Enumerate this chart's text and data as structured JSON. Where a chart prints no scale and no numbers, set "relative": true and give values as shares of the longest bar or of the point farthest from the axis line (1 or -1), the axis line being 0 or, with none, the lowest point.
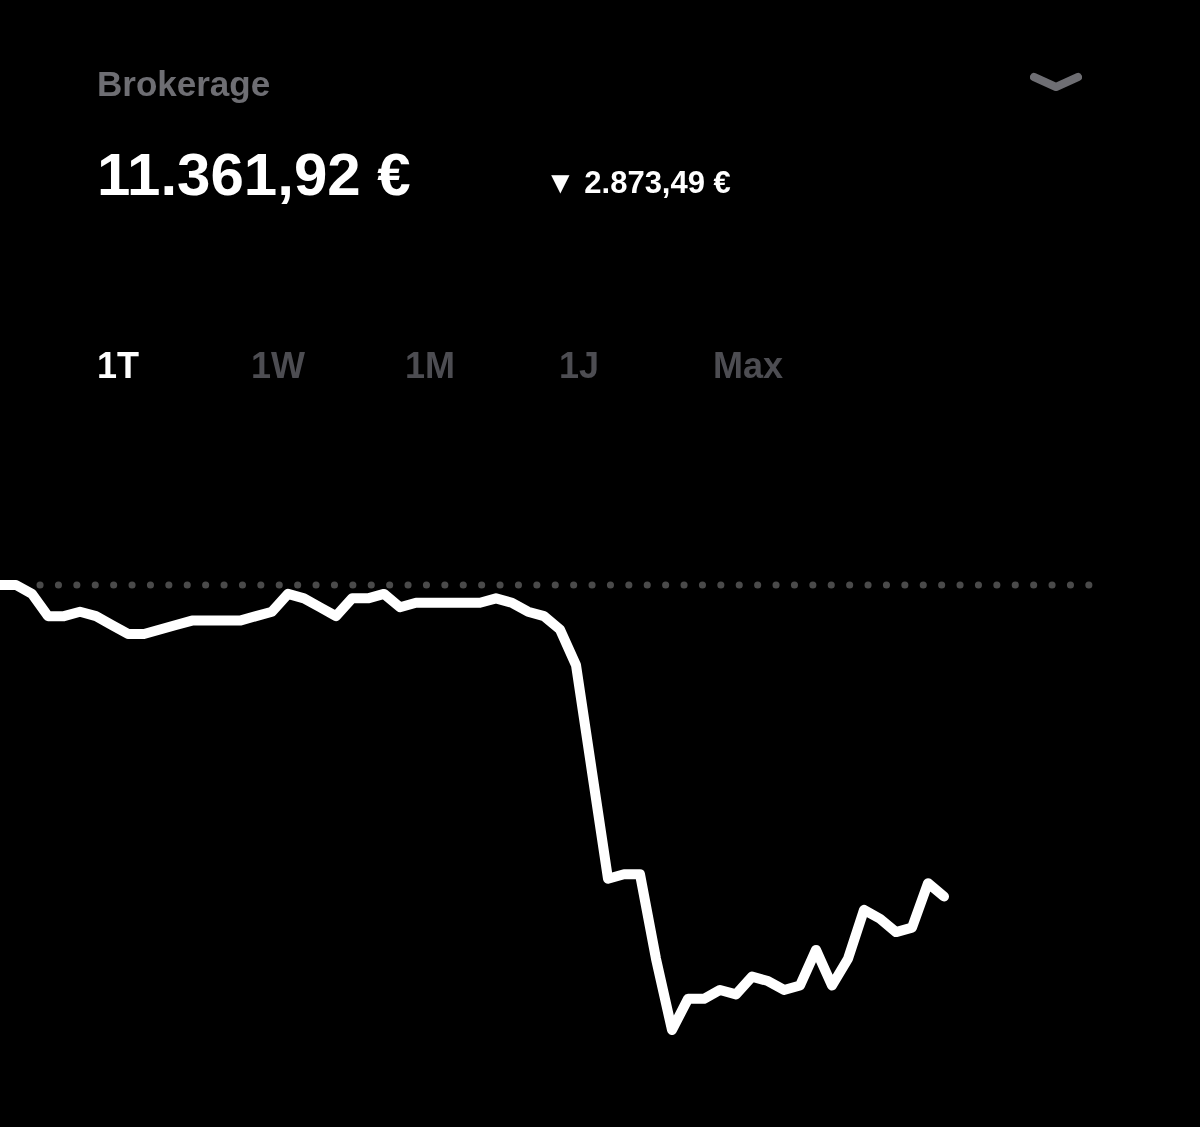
{
  "chart_data": {
    "type": "line",
    "title": "Brokerage",
    "subtitle": "11.361,92 €",
    "annotations": [
      "▼ 2.873,49 €",
      "1T",
      "1W",
      "1M",
      "1J",
      "Max"
    ],
    "relative": true,
    "grid": false,
    "legend": false,
    "marker": "none",
    "line_style": "solid",
    "categories": [
      null,
      null,
      null,
      null,
      null,
      null,
      null,
      null,
      null,
      null,
      null,
      null,
      null,
      null,
      null,
      null,
      null,
      null,
      null,
      null,
      null,
      null,
      null,
      null,
      null,
      null,
      null,
      null,
      null,
      null,
      null,
      null,
      null,
      null,
      null,
      null,
      null,
      null,
      null,
      null,
      null,
      null,
      null,
      null,
      null,
      null,
      null,
      null,
      null,
      null,
      null,
      null,
      null,
      null,
      null,
      null,
      null,
      null,
      null,
      null,
      null,
      null,
      null,
      null,
      null,
      null,
      null,
      null,
      null,
      null,
      null,
      null,
      null,
      null,
      null,
      null
    ],
    "series": [
      {
        "color": "#ffffff",
        "values": [
          1.0,
          1.0,
          0.98,
          0.93,
          0.93,
          0.94,
          0.93,
          0.91,
          0.89,
          0.89,
          0.9,
          0.91,
          0.92,
          0.92,
          0.92,
          0.92,
          0.93,
          0.94,
          0.98,
          0.97,
          0.95,
          0.93,
          0.97,
          0.97,
          0.98,
          0.95,
          0.96,
          0.96,
          0.96,
          0.96,
          0.96,
          0.97,
          0.96,
          0.94,
          0.93,
          0.9,
          0.82,
          0.58,
          0.34,
          0.35,
          0.35,
          0.16,
          0.0,
          0.07,
          0.07,
          0.09,
          0.08,
          0.12,
          0.11,
          0.09,
          0.1,
          0.18,
          0.1,
          0.16,
          0.27,
          0.25,
          0.22,
          0.23,
          0.33,
          0.3,
          null,
          null,
          null,
          null,
          null,
          null,
          null,
          null,
          null,
          null,
          null,
          null,
          null,
          null,
          null,
          null
        ]
      }
    ],
    "ref_lines": [
      {
        "axis": "y",
        "value": 1.0,
        "color": "#4a4a4a",
        "line_style": "dotted"
      }
    ]
  }
}
